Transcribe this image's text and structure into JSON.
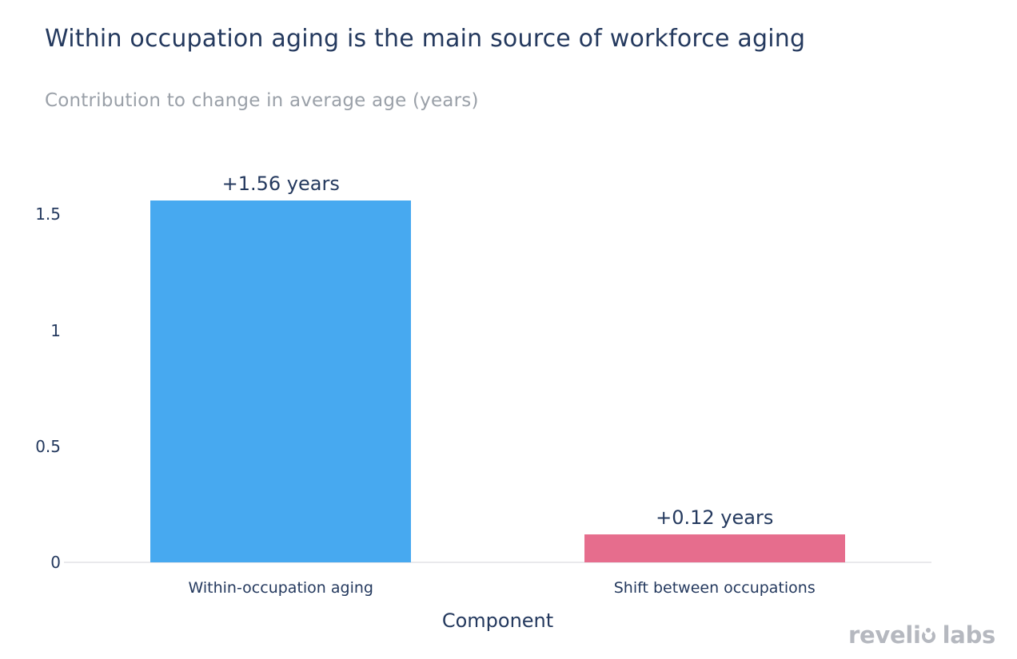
{
  "chart_data": {
    "type": "bar",
    "title": "Within occupation aging is the main source of workforce aging",
    "subtitle": "Contribution to change in average age (years)",
    "xlabel": "Component",
    "ylabel": "",
    "categories": [
      "Within-occupation aging",
      "Shift between occupations"
    ],
    "values": [
      1.56,
      0.12
    ],
    "bar_labels": [
      "+1.56 years",
      "+0.12 years"
    ],
    "bar_colors": [
      "#47a9f0",
      "#e66d8d"
    ],
    "yticks": [
      0,
      0.5,
      1,
      1.5
    ],
    "ytick_labels": [
      "0",
      "0.5",
      "1",
      "1.5"
    ],
    "ylim": [
      0,
      1.56
    ],
    "grid": false,
    "legend": "none"
  },
  "branding": {
    "prefix": "reveli",
    "suffix": "labs",
    "full_name": "revelio labs"
  },
  "colors": {
    "title_navy": "#24395e",
    "subtitle_gray": "#9aa0a8",
    "bar_blue": "#47a9f0",
    "bar_pink": "#e66d8d",
    "axis_line": "#e9e9ec",
    "logo_gray": "#b5b8bf",
    "background": "#ffffff"
  }
}
